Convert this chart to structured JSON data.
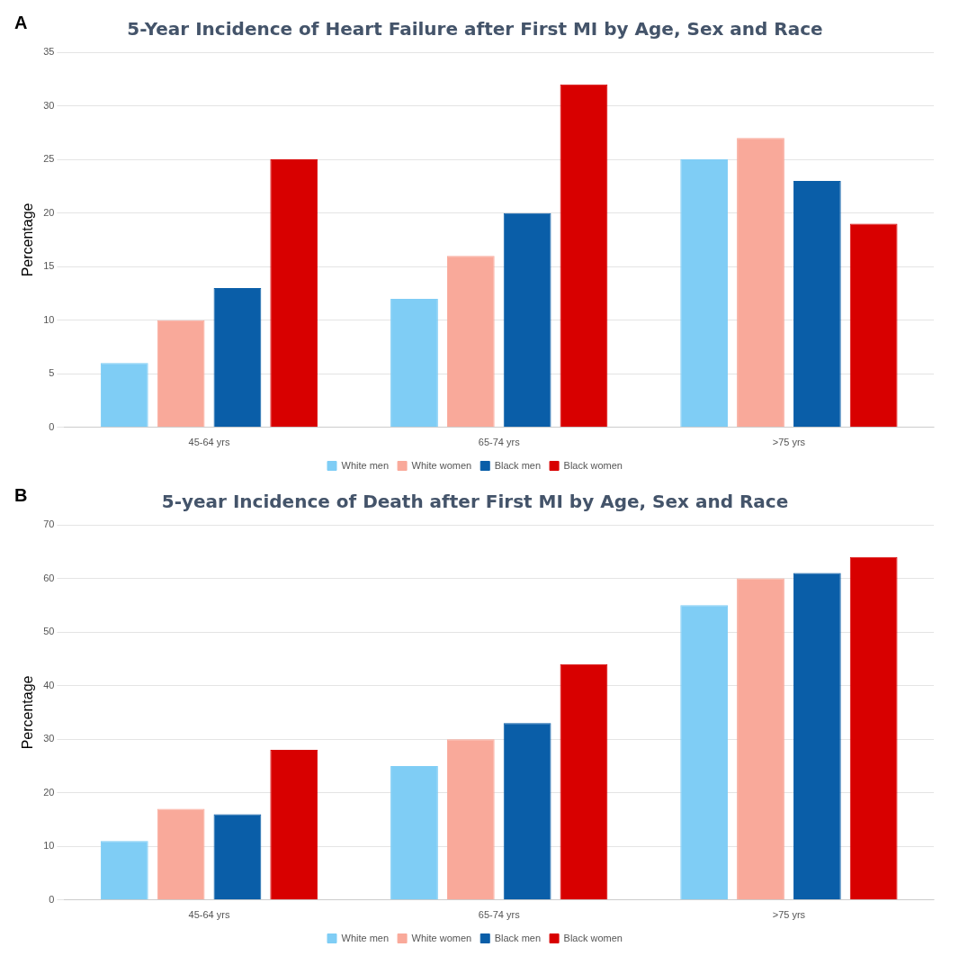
{
  "chart_data": [
    {
      "type": "bar",
      "title": "5-Year Incidence of Heart Failure after First MI by Age, Sex and Race",
      "ylabel": "Percentage",
      "annotations": [
        "A"
      ],
      "categories": [
        "45-64 yrs",
        "65-74 yrs",
        ">75 yrs"
      ],
      "series": [
        {
          "name": "White men",
          "color": "#7fcdf5",
          "values": [
            6,
            12,
            25
          ]
        },
        {
          "name": "White women",
          "color": "#f9a99a",
          "values": [
            10,
            16,
            27
          ]
        },
        {
          "name": "Black men",
          "color": "#0a5ea8",
          "values": [
            13,
            20,
            23
          ]
        },
        {
          "name": "Black women",
          "color": "#d80000",
          "values": [
            25,
            32,
            19
          ]
        }
      ],
      "ylim": [
        0,
        35
      ],
      "yticks": [
        0,
        5,
        10,
        15,
        20,
        25,
        30,
        35
      ],
      "grid": "y",
      "legend": "bottom"
    },
    {
      "type": "bar",
      "title": "5-year Incidence of Death after First MI by Age, Sex and Race",
      "ylabel": "Percentage",
      "annotations": [
        "B"
      ],
      "categories": [
        "45-64 yrs",
        "65-74 yrs",
        ">75 yrs"
      ],
      "series": [
        {
          "name": "White men",
          "color": "#7fcdf5",
          "values": [
            11,
            25,
            55
          ]
        },
        {
          "name": "White women",
          "color": "#f9a99a",
          "values": [
            17,
            30,
            60
          ]
        },
        {
          "name": "Black men",
          "color": "#0a5ea8",
          "values": [
            16,
            33,
            61
          ]
        },
        {
          "name": "Black women",
          "color": "#d80000",
          "values": [
            28,
            44,
            64
          ]
        }
      ],
      "ylim": [
        0,
        70
      ],
      "yticks": [
        0,
        10,
        20,
        30,
        40,
        50,
        60,
        70
      ],
      "grid": "y",
      "legend": "bottom"
    }
  ]
}
